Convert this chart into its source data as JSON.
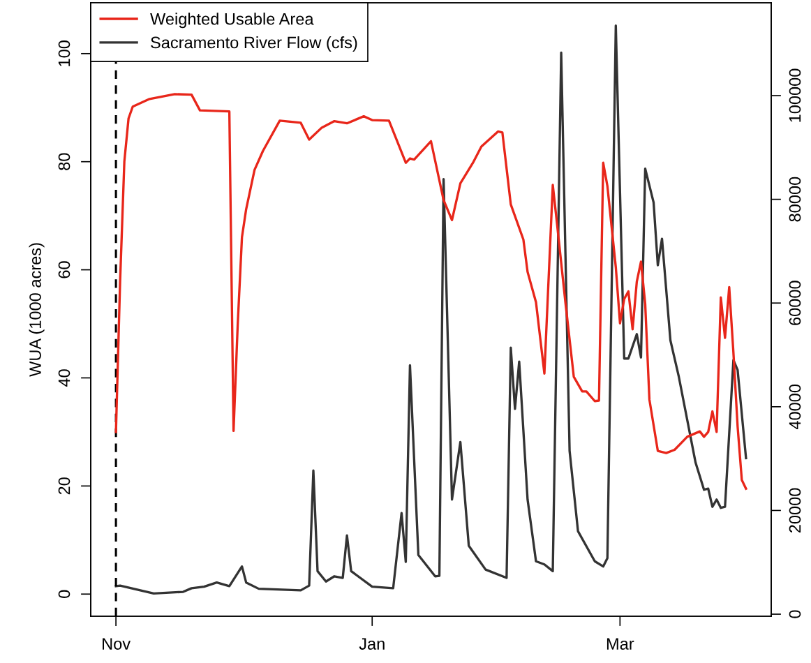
{
  "chart_data": {
    "type": "line",
    "ylabel": "WUA (1000 acres)",
    "xlim": [
      "2000-10-26",
      "2001-04-06"
    ],
    "xticks": [
      {
        "value": "2000-11-01",
        "label": "Nov"
      },
      {
        "value": "2001-01-01",
        "label": "Jan"
      },
      {
        "value": "2001-03-01",
        "label": "Mar"
      }
    ],
    "ylim": [
      -4.1,
      109.4
    ],
    "yticks": [
      0,
      20,
      40,
      60,
      80,
      100
    ],
    "y2lim": [
      -400,
      117900
    ],
    "y2ticks": [
      0,
      20000,
      40000,
      60000,
      80000,
      100000
    ],
    "legend": "top left",
    "grid": false,
    "line_style": "solid",
    "marker": "none",
    "ref_lines": [
      {
        "axis": "x",
        "value": "2000-11-01",
        "color": "#000000",
        "line_style": "dashed"
      }
    ],
    "series": [
      {
        "name": "Weighted Usable Area",
        "color": "#e8261a",
        "axis": "y",
        "x": [
          "2000-11-01",
          "2000-11-02",
          "2000-11-03",
          "2000-11-04",
          "2000-11-05",
          "2000-11-09",
          "2000-11-15",
          "2000-11-19",
          "2000-11-21",
          "2000-11-28",
          "2000-11-29",
          "2000-11-30",
          "2000-12-01",
          "2000-12-02",
          "2000-12-04",
          "2000-12-06",
          "2000-12-10",
          "2000-12-15",
          "2000-12-17",
          "2000-12-20",
          "2000-12-23",
          "2000-12-26",
          "2000-12-30",
          "2001-01-01",
          "2001-01-05",
          "2001-01-09",
          "2001-01-10",
          "2001-01-11",
          "2001-01-15",
          "2001-01-18",
          "2001-01-20",
          "2001-01-22",
          "2001-01-25",
          "2001-01-27",
          "2001-01-31",
          "2001-02-01",
          "2001-02-03",
          "2001-02-06",
          "2001-02-07",
          "2001-02-09",
          "2001-02-11",
          "2001-02-13",
          "2001-02-14",
          "2001-02-16",
          "2001-02-18",
          "2001-02-20",
          "2001-02-21",
          "2001-02-23",
          "2001-02-24",
          "2001-02-25",
          "2001-02-26",
          "2001-02-28",
          "2001-03-01",
          "2001-03-02",
          "2001-03-03",
          "2001-03-04",
          "2001-03-05",
          "2001-03-06",
          "2001-03-07",
          "2001-03-08",
          "2001-03-10",
          "2001-03-12",
          "2001-03-14",
          "2001-03-16",
          "2001-03-17",
          "2001-03-20",
          "2001-03-21",
          "2001-03-22",
          "2001-03-23",
          "2001-03-24",
          "2001-03-25",
          "2001-03-26",
          "2001-03-27",
          "2001-03-28",
          "2001-03-29",
          "2001-03-30",
          "2001-03-31"
        ],
        "values": [
          30,
          58,
          80,
          88,
          90.2,
          91.6,
          92.5,
          92.4,
          89.5,
          89.3,
          30.2,
          50,
          66,
          71.2,
          78.5,
          82,
          87.6,
          87.2,
          84.1,
          86.3,
          87.5,
          87.1,
          88.4,
          87.7,
          87.6,
          79.8,
          80.6,
          80.4,
          83.8,
          72.9,
          69.2,
          76,
          79.8,
          82.8,
          85.6,
          85.4,
          72.1,
          65.6,
          59.6,
          54,
          40.8,
          75.7,
          68.6,
          54,
          40.2,
          37.5,
          37.5,
          35.7,
          35.8,
          79.8,
          75.5,
          60.5,
          50.1,
          54.6,
          56,
          49,
          57.8,
          61.5,
          53.7,
          36,
          26.5,
          26.1,
          26.7,
          28.3,
          29.1,
          30.1,
          29.1,
          30,
          33.8,
          30,
          54.9,
          47.4,
          56.8,
          44.7,
          31,
          21.1,
          19.5
        ]
      },
      {
        "name": "Sacramento River Flow (cfs)",
        "color": "#333333",
        "axis": "y2",
        "x": [
          "2000-11-01",
          "2000-11-02",
          "2000-11-10",
          "2000-11-17",
          "2000-11-19",
          "2000-11-22",
          "2000-11-25",
          "2000-11-28",
          "2000-12-01",
          "2000-12-02",
          "2000-12-05",
          "2000-12-15",
          "2000-12-17",
          "2000-12-18",
          "2000-12-19",
          "2000-12-21",
          "2000-12-23",
          "2000-12-25",
          "2000-12-26",
          "2000-12-27",
          "2001-01-01",
          "2001-01-06",
          "2001-01-08",
          "2001-01-09",
          "2001-01-10",
          "2001-01-12",
          "2001-01-16",
          "2001-01-17",
          "2001-01-18",
          "2001-01-20",
          "2001-01-22",
          "2001-01-24",
          "2001-01-28",
          "2001-02-02",
          "2001-02-03",
          "2001-02-04",
          "2001-02-05",
          "2001-02-07",
          "2001-02-09",
          "2001-02-11",
          "2001-02-13",
          "2001-02-15",
          "2001-02-17",
          "2001-02-19",
          "2001-02-23",
          "2001-02-25",
          "2001-02-26",
          "2001-02-28",
          "2001-03-02",
          "2001-03-03",
          "2001-03-05",
          "2001-03-06",
          "2001-03-07",
          "2001-03-09",
          "2001-03-10",
          "2001-03-11",
          "2001-03-13",
          "2001-03-15",
          "2001-03-19",
          "2001-03-21",
          "2001-03-22",
          "2001-03-23",
          "2001-03-24",
          "2001-03-25",
          "2001-03-26",
          "2001-03-28",
          "2001-03-29",
          "2001-03-31"
        ],
        "values": [
          5400,
          5500,
          4000,
          4300,
          5000,
          5300,
          6100,
          5400,
          9200,
          6100,
          4900,
          4600,
          5500,
          27700,
          8300,
          6300,
          7300,
          7000,
          15200,
          8300,
          5300,
          5000,
          19500,
          10100,
          48000,
          11400,
          7300,
          7400,
          83900,
          22100,
          33200,
          13200,
          8600,
          7000,
          51400,
          39600,
          48700,
          22100,
          10200,
          9600,
          8300,
          108300,
          31500,
          16000,
          10200,
          9200,
          10800,
          113500,
          49300,
          49300,
          54000,
          49500,
          85900,
          79400,
          67300,
          72400,
          52800,
          45800,
          29200,
          24000,
          24200,
          20700,
          22100,
          20500,
          20700,
          49000,
          47100,
          30100
        ]
      }
    ]
  }
}
